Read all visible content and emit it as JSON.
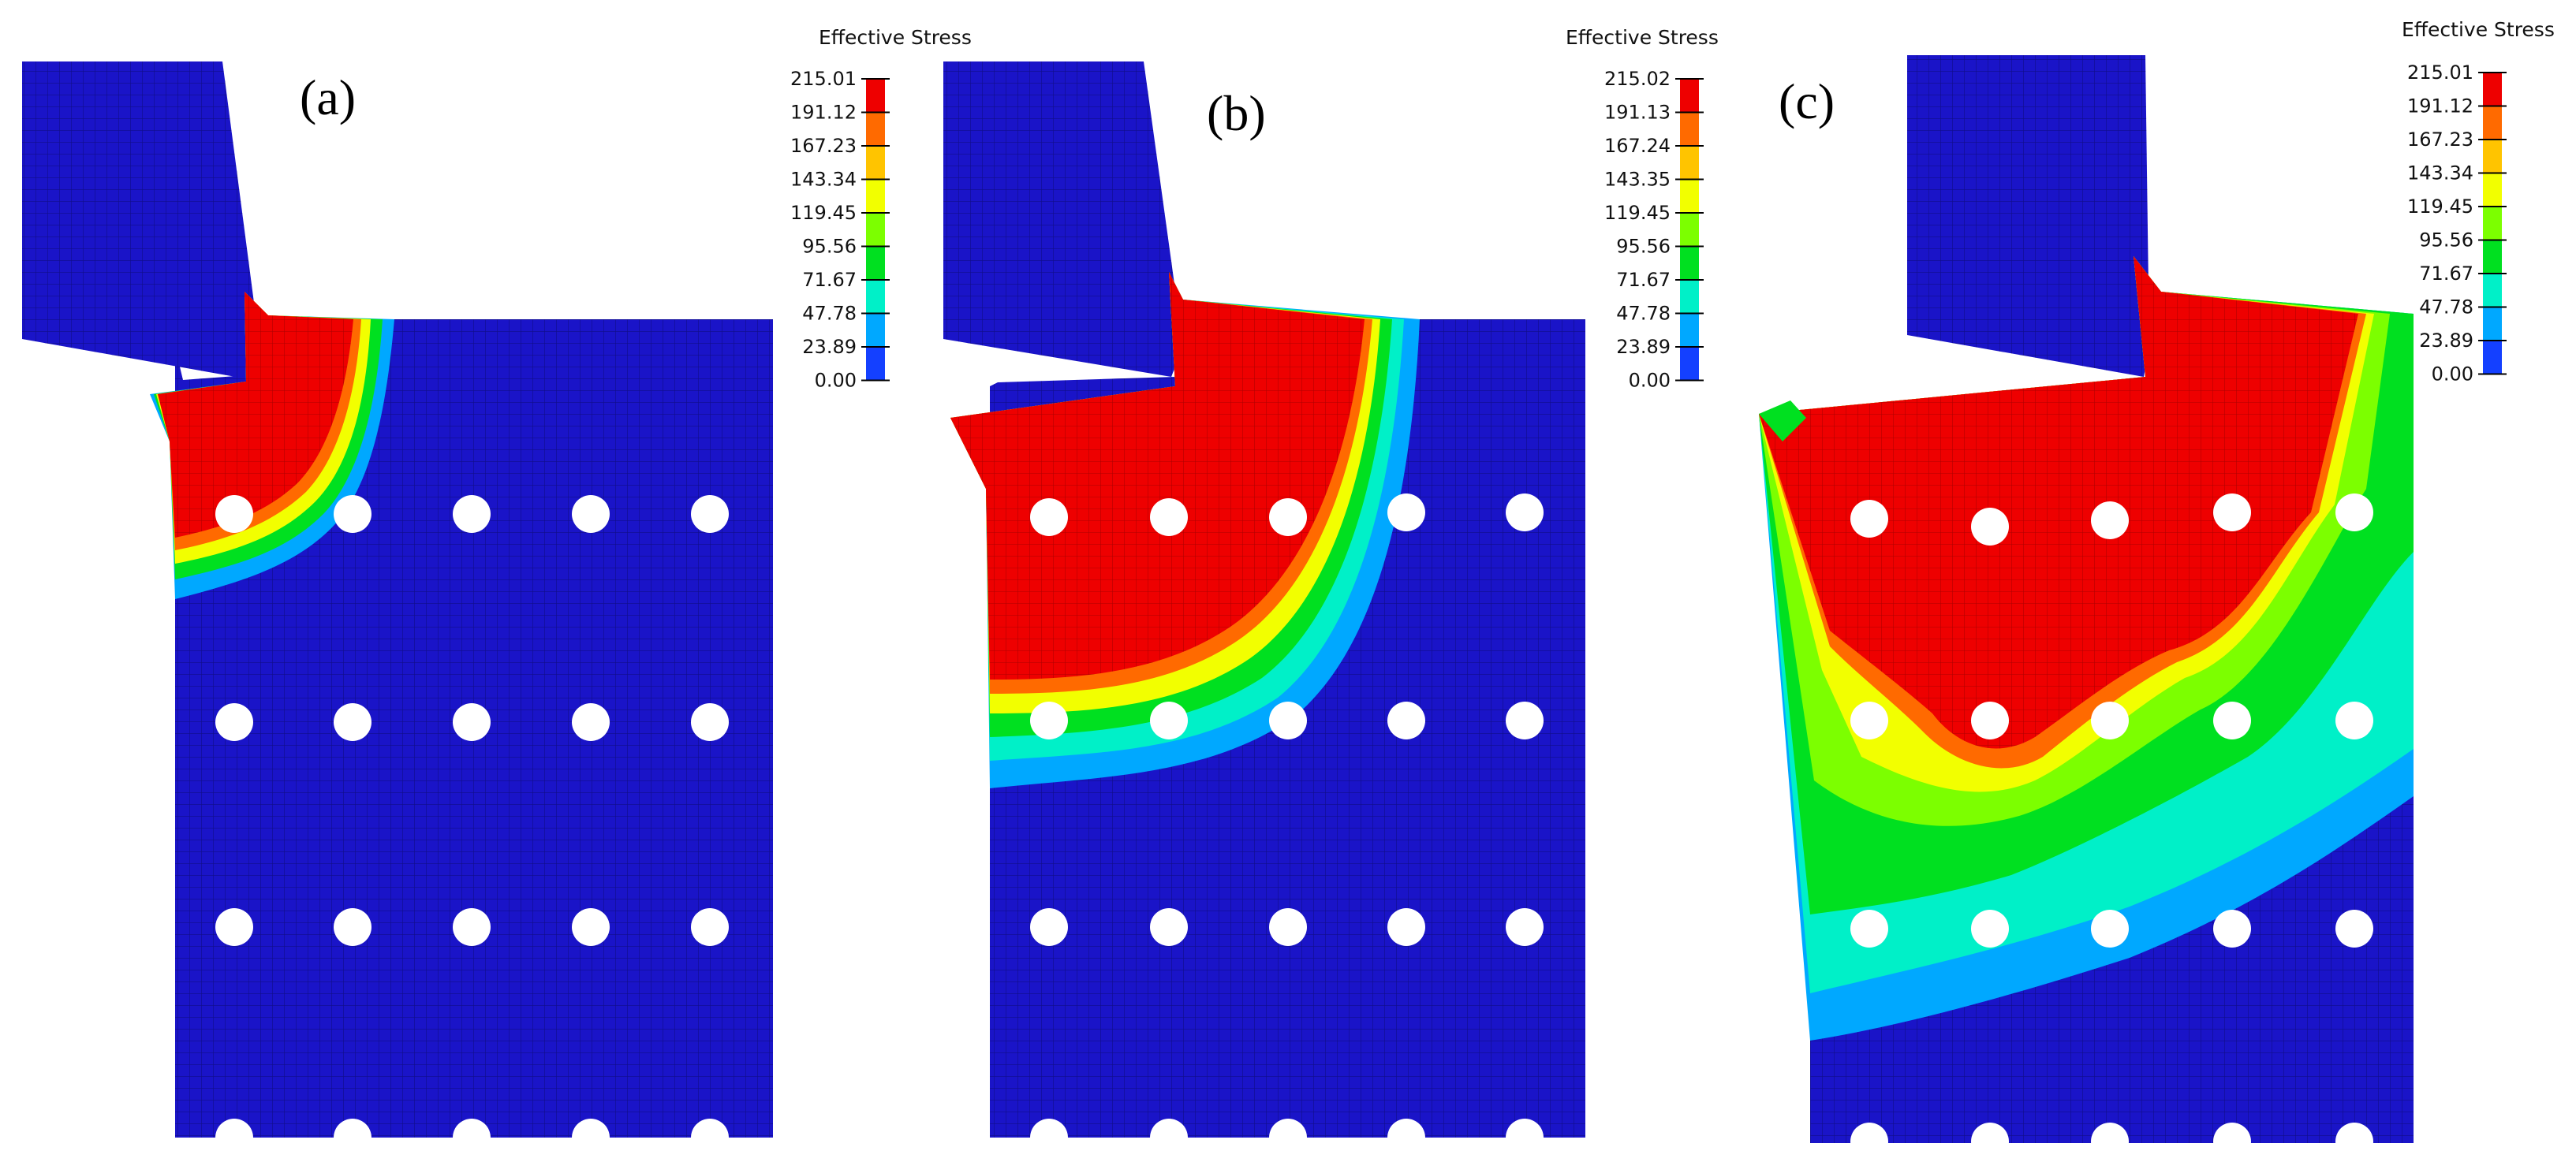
{
  "figure": {
    "panels": [
      {
        "label": "(a)",
        "legend": {
          "title": "Effective Stress",
          "values": [
            "215.01",
            "191.12",
            "167.23",
            "143.34",
            "119.45",
            "95.56",
            "71.67",
            "47.78",
            "23.89",
            "0.00"
          ]
        }
      },
      {
        "label": "(b)",
        "legend": {
          "title": "Effective Stress",
          "values": [
            "215.02",
            "191.13",
            "167.24",
            "143.35",
            "119.45",
            "95.56",
            "71.67",
            "47.78",
            "23.89",
            "0.00"
          ]
        }
      },
      {
        "label": "(c)",
        "legend": {
          "title": "Effective Stress",
          "values": [
            "215.01",
            "191.12",
            "167.23",
            "143.34",
            "119.45",
            "95.56",
            "71.67",
            "47.78",
            "23.89",
            "0.00"
          ]
        }
      }
    ],
    "colormap": [
      "#ee0000",
      "#ff6a00",
      "#ffc400",
      "#f2ff00",
      "#7cff00",
      "#00e020",
      "#00f0c8",
      "#00a8ff",
      "#1440ff",
      "#1a14c0"
    ],
    "colors": {
      "background": "#ffffff",
      "material_blue": "#1a14c8",
      "mesh_line": "#0d0a6e",
      "hole": "#ffffff"
    }
  }
}
